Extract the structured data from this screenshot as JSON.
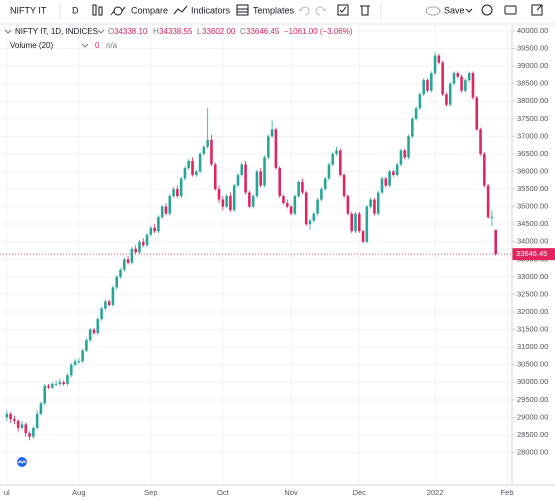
{
  "toolbar": {
    "symbol": "NIFTY IT",
    "interval": "D",
    "compare": "Compare",
    "indicators": "Indicators",
    "templates": "Templates",
    "save": "Save"
  },
  "chart_data": {
    "type": "candlestick",
    "title": "NIFTY IT, 1D, INDICES",
    "ohlc_legend": {
      "open_label": "O",
      "open": "34338.10",
      "high_label": "H",
      "high": "34338.55",
      "low_label": "L",
      "low": "33602.00",
      "close_label": "C",
      "close": "33646.45",
      "change": "−1061.00 (−3.06%)"
    },
    "volume_label": "Volume (20)",
    "volume_value": "0",
    "volume_na": "n/a",
    "up_color": "#26a69a",
    "down_color": "#e0245e",
    "grid": true,
    "xlim": [
      -1.8,
      133.3
    ],
    "xticks": [
      {
        "value": 0,
        "label": "ul"
      },
      {
        "value": 19,
        "label": "Aug"
      },
      {
        "value": 38,
        "label": "Sep"
      },
      {
        "value": 57,
        "label": "Oct"
      },
      {
        "value": 75,
        "label": "Nov"
      },
      {
        "value": 93,
        "label": "Dec"
      },
      {
        "value": 113,
        "label": "2022"
      },
      {
        "value": 132,
        "label": "Feb"
      }
    ],
    "ylim": [
      27075,
      40170
    ],
    "yticks": [
      {
        "value": 28000,
        "label": "28000.00"
      },
      {
        "value": 28500,
        "label": "28500.00"
      },
      {
        "value": 29000,
        "label": "29000.00"
      },
      {
        "value": 29500,
        "label": "29500.00"
      },
      {
        "value": 30000,
        "label": "30000.00"
      },
      {
        "value": 30500,
        "label": "30500.00"
      },
      {
        "value": 31000,
        "label": "31000.00"
      },
      {
        "value": 31500,
        "label": "31500.00"
      },
      {
        "value": 32000,
        "label": "32000.00"
      },
      {
        "value": 32500,
        "label": "32500.00"
      },
      {
        "value": 33000,
        "label": "33000.00"
      },
      {
        "value": 33500,
        "label": "33500.00"
      },
      {
        "value": 34000,
        "label": "34000.00"
      },
      {
        "value": 34500,
        "label": "34500.00"
      },
      {
        "value": 35000,
        "label": "35000.00"
      },
      {
        "value": 35500,
        "label": "35500.00"
      },
      {
        "value": 36000,
        "label": "36000.00"
      },
      {
        "value": 36500,
        "label": "36500.00"
      },
      {
        "value": 37000,
        "label": "37000.00"
      },
      {
        "value": 37500,
        "label": "37500.00"
      },
      {
        "value": 38000,
        "label": "38000.00"
      },
      {
        "value": 38500,
        "label": "38500.00"
      },
      {
        "value": 39000,
        "label": "39000.00"
      },
      {
        "value": 39500,
        "label": "39500.00"
      },
      {
        "value": 40000,
        "label": "40000.00"
      }
    ],
    "candles": [
      [
        29000,
        29200,
        28900,
        29100
      ],
      [
        29100,
        29150,
        28850,
        28950
      ],
      [
        28950,
        29050,
        28800,
        28900
      ],
      [
        28900,
        28950,
        28600,
        28700
      ],
      [
        28700,
        28900,
        28650,
        28800
      ],
      [
        28800,
        28850,
        28450,
        28550
      ],
      [
        28550,
        28600,
        28350,
        28450
      ],
      [
        28450,
        28750,
        28400,
        28700
      ],
      [
        28700,
        29200,
        28650,
        29100
      ],
      [
        29100,
        29450,
        29050,
        29400
      ],
      [
        29400,
        29950,
        29350,
        29900
      ],
      [
        29900,
        29950,
        29800,
        29850
      ],
      [
        29850,
        30000,
        29800,
        29950
      ],
      [
        29950,
        30050,
        29900,
        29950
      ],
      [
        29950,
        30100,
        29900,
        30000
      ],
      [
        30000,
        30050,
        29900,
        29950
      ],
      [
        29950,
        30250,
        29900,
        30200
      ],
      [
        30200,
        30550,
        30150,
        30500
      ],
      [
        30500,
        30650,
        30450,
        30600
      ],
      [
        30600,
        30680,
        30520,
        30600
      ],
      [
        30600,
        30950,
        30550,
        30900
      ],
      [
        30900,
        31250,
        30850,
        31200
      ],
      [
        31200,
        31550,
        31150,
        31500
      ],
      [
        31500,
        31550,
        31350,
        31400
      ],
      [
        31400,
        31850,
        31350,
        31800
      ],
      [
        31800,
        32150,
        31750,
        32100
      ],
      [
        32100,
        32350,
        32050,
        32300
      ],
      [
        32300,
        32350,
        32150,
        32200
      ],
      [
        32200,
        32750,
        32150,
        32700
      ],
      [
        32700,
        33050,
        32650,
        33000
      ],
      [
        33000,
        33250,
        32950,
        33200
      ],
      [
        33200,
        33550,
        33150,
        33500
      ],
      [
        33500,
        33600,
        33350,
        33400
      ],
      [
        33400,
        33850,
        33350,
        33800
      ],
      [
        33800,
        33900,
        33650,
        33700
      ],
      [
        33700,
        34050,
        33650,
        34000
      ],
      [
        34000,
        34100,
        33850,
        33900
      ],
      [
        33900,
        34250,
        33850,
        34200
      ],
      [
        34200,
        34450,
        34150,
        34400
      ],
      [
        34400,
        34500,
        34250,
        34300
      ],
      [
        34300,
        34750,
        34250,
        34700
      ],
      [
        34700,
        35050,
        34650,
        35000
      ],
      [
        35000,
        35100,
        34750,
        34800
      ],
      [
        34800,
        35350,
        34750,
        35300
      ],
      [
        35300,
        35550,
        35250,
        35500
      ],
      [
        35500,
        35600,
        35250,
        35300
      ],
      [
        35300,
        35850,
        35250,
        35800
      ],
      [
        35800,
        36150,
        35750,
        36100
      ],
      [
        36100,
        36350,
        36050,
        36300
      ],
      [
        36300,
        36400,
        35850,
        35900
      ],
      [
        35900,
        36050,
        35850,
        36000
      ],
      [
        36000,
        36550,
        35950,
        36500
      ],
      [
        36500,
        36750,
        36450,
        36700
      ],
      [
        36700,
        37800,
        36650,
        36900
      ],
      [
        36900,
        37050,
        36150,
        36200
      ],
      [
        36200,
        36250,
        35450,
        35500
      ],
      [
        35500,
        35600,
        35100,
        35200
      ],
      [
        35200,
        35300,
        34900,
        35000
      ],
      [
        35000,
        35350,
        34950,
        35300
      ],
      [
        35300,
        35400,
        34850,
        34900
      ],
      [
        34900,
        35650,
        34850,
        35600
      ],
      [
        35600,
        35950,
        35550,
        35900
      ],
      [
        35900,
        36250,
        35850,
        36200
      ],
      [
        36200,
        36300,
        35350,
        35400
      ],
      [
        35400,
        35450,
        34950,
        35000
      ],
      [
        35000,
        35350,
        34950,
        35300
      ],
      [
        35300,
        36050,
        35250,
        36000
      ],
      [
        36000,
        36100,
        35550,
        35600
      ],
      [
        35600,
        36450,
        35550,
        36400
      ],
      [
        36400,
        37050,
        36350,
        37000
      ],
      [
        37000,
        37450,
        36950,
        37200
      ],
      [
        37200,
        37250,
        36050,
        36100
      ],
      [
        36100,
        36150,
        35250,
        35300
      ],
      [
        35300,
        35350,
        35050,
        35100
      ],
      [
        35100,
        35200,
        34950,
        35000
      ],
      [
        35000,
        35050,
        34750,
        34800
      ],
      [
        34800,
        35350,
        34750,
        35300
      ],
      [
        35300,
        35750,
        35250,
        35700
      ],
      [
        35700,
        35800,
        35350,
        35400
      ],
      [
        35400,
        35450,
        34450,
        34500
      ],
      [
        34500,
        34650,
        34350,
        34600
      ],
      [
        34600,
        34850,
        34550,
        34800
      ],
      [
        34800,
        35250,
        34750,
        35200
      ],
      [
        35200,
        35550,
        35150,
        35500
      ],
      [
        35500,
        35850,
        35450,
        35800
      ],
      [
        35800,
        36250,
        35750,
        36200
      ],
      [
        36200,
        36550,
        36150,
        36500
      ],
      [
        36500,
        36700,
        36450,
        36600
      ],
      [
        36600,
        36650,
        35850,
        35900
      ],
      [
        35900,
        35950,
        35250,
        35300
      ],
      [
        35300,
        35350,
        34750,
        34800
      ],
      [
        34800,
        34850,
        34250,
        34300
      ],
      [
        34300,
        34850,
        34250,
        34800
      ],
      [
        34800,
        34850,
        34250,
        34300
      ],
      [
        34300,
        34350,
        33950,
        34000
      ],
      [
        34000,
        35050,
        33950,
        35000
      ],
      [
        35000,
        35250,
        34950,
        35200
      ],
      [
        35200,
        35250,
        34750,
        34800
      ],
      [
        34800,
        35450,
        34750,
        35400
      ],
      [
        35400,
        35850,
        35350,
        35800
      ],
      [
        35800,
        35850,
        35550,
        35600
      ],
      [
        35600,
        36050,
        35550,
        36000
      ],
      [
        36000,
        36050,
        35850,
        35900
      ],
      [
        35900,
        36250,
        35850,
        36200
      ],
      [
        36200,
        36650,
        36150,
        36600
      ],
      [
        36600,
        36650,
        36350,
        36400
      ],
      [
        36400,
        37050,
        36350,
        37000
      ],
      [
        37000,
        37550,
        36950,
        37500
      ],
      [
        37500,
        37850,
        37450,
        37800
      ],
      [
        37800,
        38250,
        37750,
        38200
      ],
      [
        38200,
        38650,
        38150,
        38600
      ],
      [
        38600,
        38650,
        38250,
        38300
      ],
      [
        38300,
        38850,
        38250,
        38800
      ],
      [
        38800,
        39400,
        38750,
        39300
      ],
      [
        39300,
        39350,
        39050,
        39100
      ],
      [
        39100,
        39150,
        38150,
        38200
      ],
      [
        38200,
        38250,
        37850,
        37900
      ],
      [
        37900,
        38550,
        37850,
        38500
      ],
      [
        38500,
        38850,
        38450,
        38800
      ],
      [
        38800,
        38850,
        38650,
        38700
      ],
      [
        38700,
        38750,
        38250,
        38300
      ],
      [
        38300,
        38650,
        38250,
        38600
      ],
      [
        38600,
        38850,
        38550,
        38800
      ],
      [
        38800,
        38850,
        38050,
        38100
      ],
      [
        38100,
        38150,
        37150,
        37200
      ],
      [
        37200,
        37250,
        36450,
        36500
      ],
      [
        36500,
        36550,
        35550,
        35600
      ],
      [
        35600,
        35650,
        34650,
        34700
      ],
      [
        34700,
        34900,
        34450,
        34707.45
      ],
      [
        34338.1,
        34338.55,
        33602.0,
        33646.45
      ]
    ]
  }
}
